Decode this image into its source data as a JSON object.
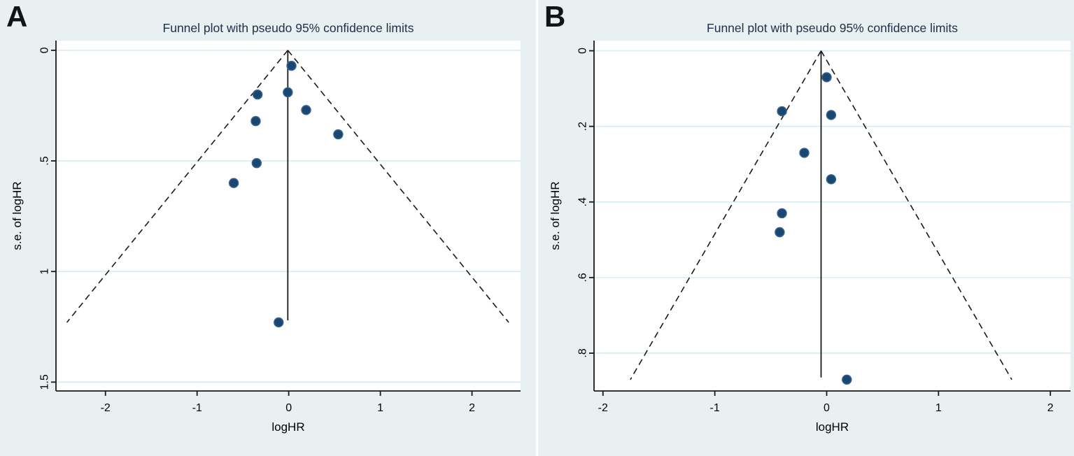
{
  "figure": {
    "description_title": "Funnel plots with pseudo 95% confidence limits"
  },
  "colors": {
    "canvas_background": "#e9f0f2",
    "plot_background": "#ffffff",
    "gridline": "#d9eaf3",
    "axis_line": "#1a1a1a",
    "funnel_line": "#1a1a1a",
    "marker_fill": "#1a476f",
    "marker_edge": "#33608f",
    "title_text": "#20304a",
    "tick_text": "#000000"
  },
  "chart_data": [
    {
      "type": "scatter",
      "subtype": "funnel-plot",
      "panel_label": "A",
      "title": "Funnel plot with pseudo 95% confidence limits",
      "xlabel": "logHR",
      "ylabel": "s.e. of logHR",
      "xlim": [
        -2.54,
        2.53
      ],
      "ylim": [
        -0.044,
        1.54
      ],
      "y_axis_inverted": true,
      "grid": true,
      "xticks": [
        -2,
        -1,
        0,
        1,
        2
      ],
      "xtick_labels": [
        "-2",
        "-1",
        "0",
        "1",
        "2"
      ],
      "yticks": [
        0,
        0.5,
        1,
        1.5
      ],
      "ytick_labels": [
        "0",
        ".5",
        "1",
        "1.5"
      ],
      "pooled_logHR": -0.01,
      "ci_multiplier": 1.96,
      "funnel_max_se": 1.23,
      "points": [
        {
          "logHR": 0.03,
          "se": 0.07
        },
        {
          "logHR": -0.01,
          "se": 0.19
        },
        {
          "logHR": -0.34,
          "se": 0.2
        },
        {
          "logHR": 0.19,
          "se": 0.27
        },
        {
          "logHR": -0.36,
          "se": 0.32
        },
        {
          "logHR": 0.54,
          "se": 0.38
        },
        {
          "logHR": -0.35,
          "se": 0.51
        },
        {
          "logHR": -0.6,
          "se": 0.6
        },
        {
          "logHR": -0.11,
          "se": 1.23
        }
      ]
    },
    {
      "type": "scatter",
      "subtype": "funnel-plot",
      "panel_label": "B",
      "title": "Funnel plot with pseudo 95% confidence limits",
      "xlabel": "logHR",
      "ylabel": "s.e. of logHR",
      "xlim": [
        -2.08,
        2.18
      ],
      "ylim": [
        -0.027,
        0.9
      ],
      "y_axis_inverted": true,
      "grid": true,
      "xticks": [
        -2,
        -1,
        0,
        1,
        2
      ],
      "xtick_labels": [
        "-2",
        "-1",
        "0",
        "1",
        "2"
      ],
      "yticks": [
        0,
        0.2,
        0.4,
        0.6,
        0.8
      ],
      "ytick_labels": [
        "0",
        ".2",
        ".4",
        ".6",
        ".8"
      ],
      "pooled_logHR": -0.05,
      "ci_multiplier": 1.96,
      "funnel_max_se": 0.87,
      "points": [
        {
          "logHR": 0.0,
          "se": 0.07
        },
        {
          "logHR": -0.4,
          "se": 0.16
        },
        {
          "logHR": 0.04,
          "se": 0.17
        },
        {
          "logHR": -0.2,
          "se": 0.27
        },
        {
          "logHR": 0.04,
          "se": 0.34
        },
        {
          "logHR": -0.4,
          "se": 0.43
        },
        {
          "logHR": -0.42,
          "se": 0.48
        },
        {
          "logHR": 0.18,
          "se": 0.87
        }
      ]
    }
  ]
}
